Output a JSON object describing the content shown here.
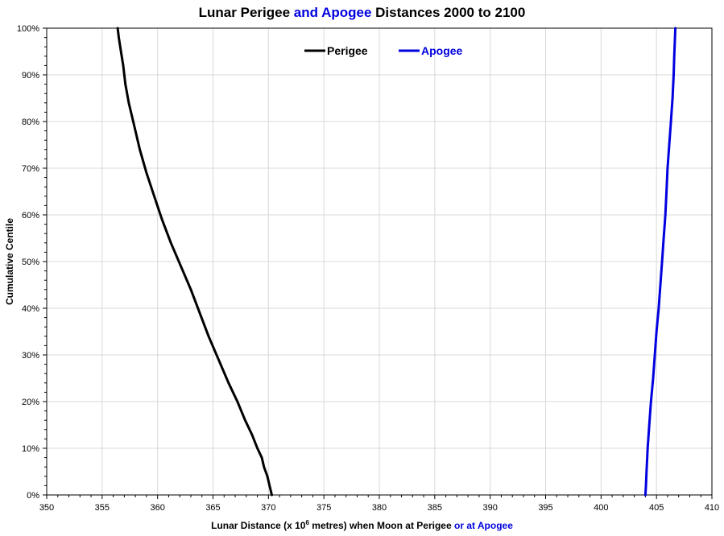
{
  "chart_data": {
    "type": "line",
    "title_parts": [
      "Lunar Perigee ",
      "and Apogee",
      " Distances 2000 to 2100"
    ],
    "xlabel_parts": [
      "Lunar Distance (x 10",
      "6",
      " metres) when Moon at Perigee ",
      "or at Apogee"
    ],
    "ylabel": "Cumulative Centile",
    "xlim": [
      350,
      410
    ],
    "ylim": [
      0,
      100
    ],
    "x_ticks": [
      "350",
      "355",
      "360",
      "365",
      "370",
      "375",
      "380",
      "385",
      "390",
      "395",
      "400",
      "405",
      "410"
    ],
    "y_ticks": [
      "0%",
      "10%",
      "20%",
      "30%",
      "40%",
      "50%",
      "60%",
      "70%",
      "80%",
      "90%",
      "100%"
    ],
    "grid": true,
    "legend_position": "top-center",
    "series": [
      {
        "name": "Perigee",
        "color": "#000000",
        "x": [
          370.3,
          370.1,
          369.9,
          369.6,
          369.4,
          369.0,
          368.5,
          367.9,
          367.2,
          366.4,
          365.5,
          364.6,
          363.8,
          363.0,
          362.1,
          361.2,
          360.4,
          359.7,
          359.0,
          358.4,
          357.9,
          357.4,
          357.1,
          356.9,
          356.7,
          356.5,
          356.4
        ],
        "y": [
          0,
          2,
          4,
          6,
          8,
          10,
          13,
          16,
          20,
          24,
          29,
          34,
          39,
          44,
          49,
          54,
          59,
          64,
          69,
          74,
          79,
          84,
          88,
          92,
          95,
          98,
          100
        ]
      },
      {
        "name": "Apogee",
        "color": "#0000e0",
        "x": [
          404.0,
          404.05,
          404.1,
          404.2,
          404.35,
          404.5,
          404.7,
          404.85,
          405.0,
          405.2,
          405.35,
          405.5,
          405.65,
          405.8,
          405.9,
          406.0,
          406.15,
          406.3,
          406.45,
          406.55,
          406.6,
          406.65,
          406.7
        ],
        "y": [
          0,
          2,
          5,
          10,
          15,
          20,
          25,
          30,
          35,
          40,
          45,
          50,
          55,
          60,
          65,
          70,
          75,
          80,
          85,
          90,
          94,
          97,
          100
        ]
      }
    ]
  }
}
